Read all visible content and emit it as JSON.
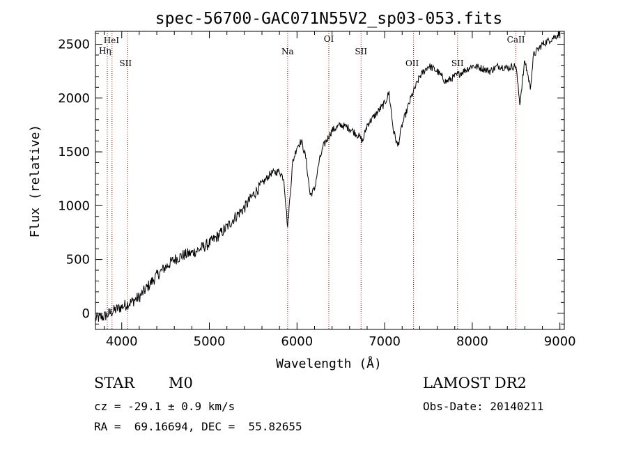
{
  "chart_data": {
    "type": "line",
    "title": "spec-56700-GAC071N55V2_sp03-053.fits",
    "xlabel": "Wavelength (Å)",
    "ylabel": "Flux (relative)",
    "xlim": [
      3700,
      9050
    ],
    "ylim": [
      -150,
      2620
    ],
    "xticks": [
      4000,
      5000,
      6000,
      7000,
      8000,
      9000
    ],
    "yticks": [
      0,
      500,
      1000,
      1500,
      2000,
      2500
    ],
    "series": [
      {
        "x": [
          3700,
          3800,
          3900,
          4000,
          4100,
          4200,
          4300,
          4400,
          4500,
          4600,
          4700,
          4800,
          4900,
          5000,
          5100,
          5200,
          5300,
          5400,
          5500,
          5600,
          5700,
          5800,
          5850,
          5893,
          5950,
          6000,
          6050,
          6100,
          6150,
          6200,
          6250,
          6300,
          6400,
          6500,
          6600,
          6700,
          6750,
          6800,
          6900,
          7000,
          7050,
          7100,
          7150,
          7200,
          7300,
          7400,
          7500,
          7600,
          7700,
          7800,
          7900,
          8000,
          8100,
          8200,
          8300,
          8400,
          8498,
          8542,
          8600,
          8662,
          8700,
          8800,
          8900,
          9000
        ],
        "values": [
          -50,
          -30,
          20,
          60,
          100,
          150,
          250,
          350,
          430,
          500,
          540,
          560,
          600,
          650,
          720,
          800,
          900,
          980,
          1100,
          1200,
          1300,
          1320,
          1250,
          800,
          1400,
          1550,
          1600,
          1450,
          1100,
          1150,
          1400,
          1550,
          1700,
          1750,
          1720,
          1650,
          1600,
          1750,
          1850,
          1950,
          2050,
          1700,
          1550,
          1750,
          2000,
          2200,
          2300,
          2250,
          2150,
          2200,
          2250,
          2300,
          2280,
          2250,
          2300,
          2280,
          2300,
          1950,
          2350,
          2100,
          2400,
          2500,
          2550,
          2600
        ]
      }
    ],
    "lines": [
      {
        "label": "HeI",
        "x": 3889
      },
      {
        "label": "Hη",
        "x": 3835
      },
      {
        "label": "SII",
        "x": 4069
      },
      {
        "label": "Na",
        "x": 5893
      },
      {
        "label": "OI",
        "x": 6363
      },
      {
        "label": "SII",
        "x": 6731
      },
      {
        "label": "OII",
        "x": 7330
      },
      {
        "label": "SII",
        "x": 7832
      },
      {
        "label": "CaII",
        "x": 8498
      }
    ],
    "grid": false,
    "legend": "none"
  },
  "info": {
    "object_class": "STAR",
    "subclass": "M0",
    "survey": "LAMOST DR2",
    "redshift": "cz = -29.1 ± 0.9 km/s",
    "obs_date": "Obs-Date: 20140211",
    "coords": "RA =  69.16694, DEC =  55.82655"
  },
  "colors": {
    "line": "#000000",
    "marker": "#8b0000"
  }
}
